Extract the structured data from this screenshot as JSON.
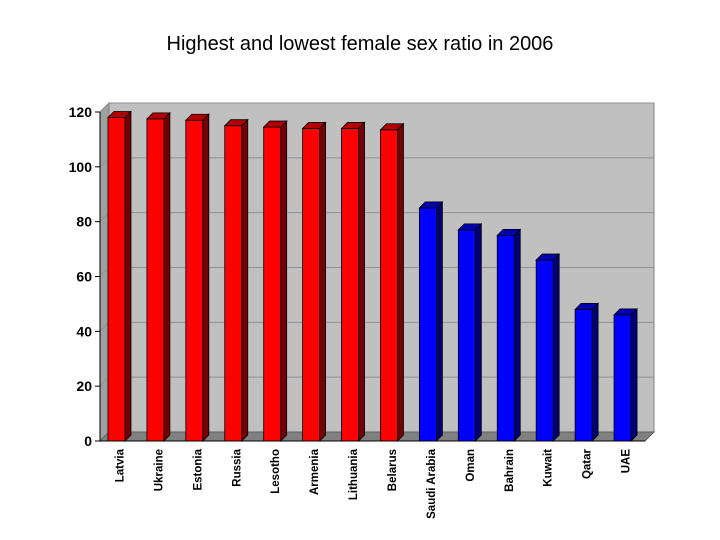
{
  "chart_data": {
    "type": "bar",
    "title": "Highest and lowest female sex ratio in 2006",
    "xlabel": "",
    "ylabel": "",
    "ylim": [
      0,
      120
    ],
    "yticks": [
      0,
      20,
      40,
      60,
      80,
      100,
      120
    ],
    "grid": true,
    "legend": "none",
    "categories": [
      "Latvia",
      "Ukraine",
      "Estonia",
      "Russia",
      "Lesotho",
      "Armenia",
      "Lithuania",
      "Belarus",
      "Saudi Arabia",
      "Oman",
      "Bahrain",
      "Kuwait",
      "Qatar",
      "UAE"
    ],
    "values": [
      118,
      117.5,
      117,
      115,
      114.5,
      114,
      114,
      113.5,
      85,
      77,
      75,
      66,
      48,
      46
    ],
    "bar_colors": [
      "#ff0000",
      "#ff0000",
      "#ff0000",
      "#ff0000",
      "#ff0000",
      "#ff0000",
      "#ff0000",
      "#ff0000",
      "#0000ff",
      "#0000ff",
      "#0000ff",
      "#0000ff",
      "#0000ff",
      "#0000ff"
    ],
    "plot_background": "#c0c0c0"
  }
}
